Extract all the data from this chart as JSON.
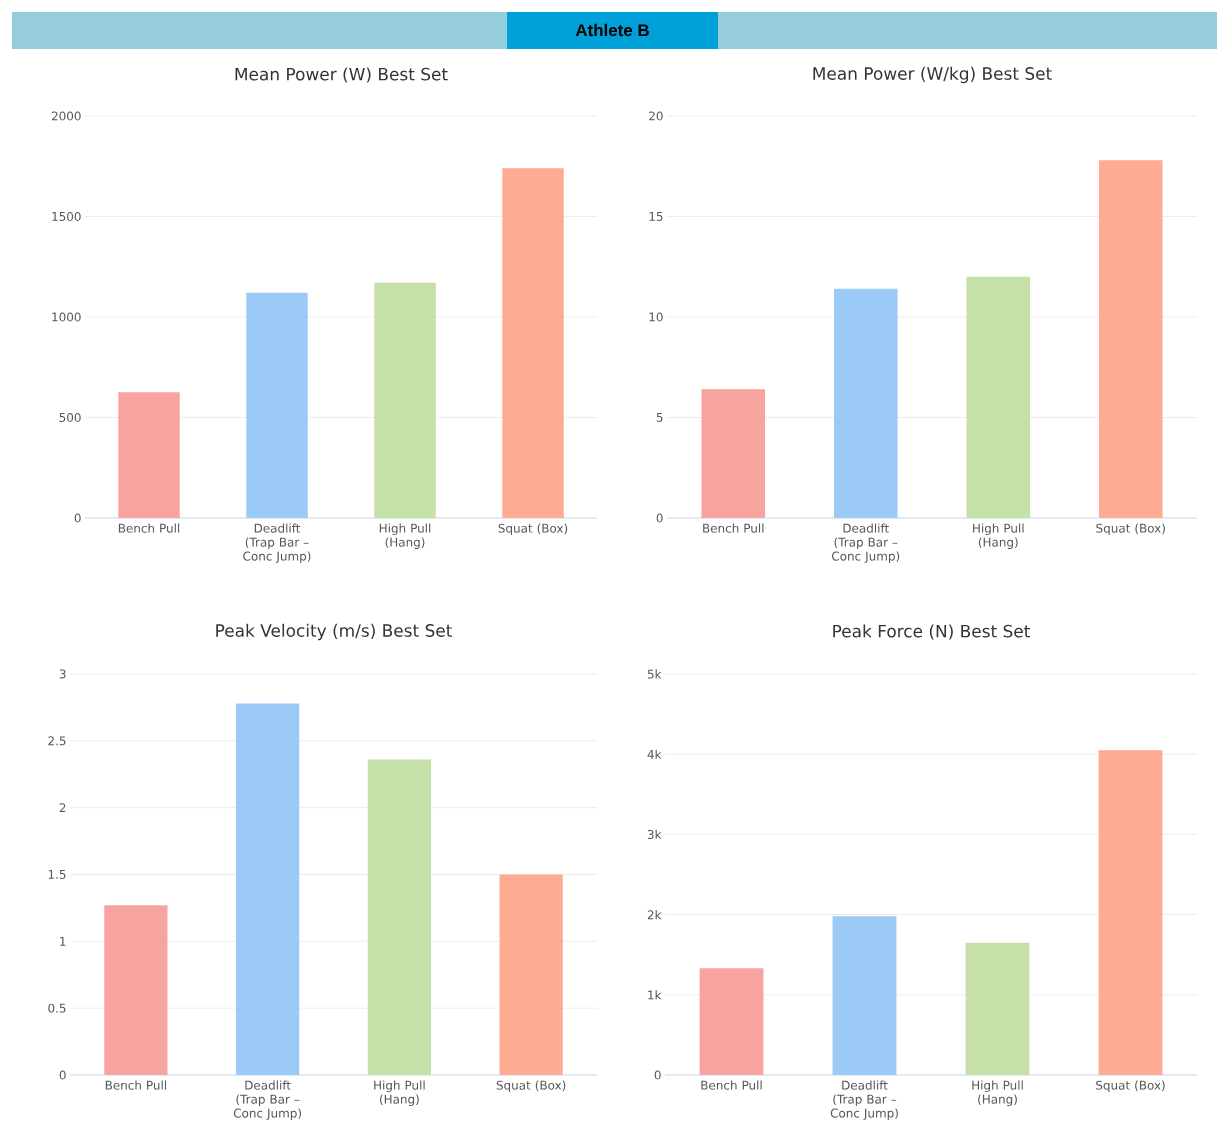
{
  "chart_data": [
    {
      "type": "other",
      "title": "Athlete B"
    },
    {
      "type": "bar",
      "title": "Mean Power (W) Best Set",
      "categories": [
        "Bench Pull",
        "Deadlift (Trap Bar – Conc Jump)",
        "High Pull (Hang)",
        "Squat (Box)"
      ],
      "values": [
        625,
        1120,
        1170,
        1740
      ],
      "colors": [
        "#f7a39f",
        "#9bcaf6",
        "#c6e0a9",
        "#fdab93"
      ],
      "ylim": [
        0,
        2000
      ],
      "yticks": [
        0,
        500,
        1000,
        1500,
        2000
      ],
      "grid": "y"
    },
    {
      "type": "bar",
      "title": "Mean Power (W/kg) Best Set",
      "categories": [
        "Bench Pull",
        "Deadlift (Trap Bar – Conc Jump)",
        "High Pull (Hang)",
        "Squat (Box)"
      ],
      "values": [
        6.4,
        11.4,
        12.0,
        17.8
      ],
      "colors": [
        "#f7a39f",
        "#9bcaf6",
        "#c6e0a9",
        "#fdab93"
      ],
      "ylim": [
        0,
        20
      ],
      "yticks": [
        0,
        5,
        10,
        15,
        20
      ],
      "grid": "y"
    },
    {
      "type": "bar",
      "title": "Peak Velocity (m/s) Best Set",
      "categories": [
        "Bench Pull",
        "Deadlift (Trap Bar – Conc Jump)",
        "High Pull (Hang)",
        "Squat (Box)"
      ],
      "values": [
        1.27,
        2.78,
        2.36,
        1.5
      ],
      "colors": [
        "#f7a39f",
        "#9bcaf6",
        "#c6e0a9",
        "#fdab93"
      ],
      "ylim": [
        0,
        3
      ],
      "yticks": [
        0,
        0.5,
        1,
        1.5,
        2,
        2.5,
        3
      ],
      "grid": "y"
    },
    {
      "type": "bar",
      "title": "Peak Force (N) Best Set",
      "categories": [
        "Bench Pull",
        "Deadlift (Trap Bar – Conc Jump)",
        "High Pull (Hang)",
        "Squat (Box)"
      ],
      "values": [
        1330,
        1980,
        1650,
        4050
      ],
      "colors": [
        "#f7a39f",
        "#9bcaf6",
        "#c6e0a9",
        "#fdab93"
      ],
      "ylim": [
        0,
        5000
      ],
      "yticks": [
        0,
        {
          "value": 1000,
          "label": "1k"
        },
        {
          "value": 2000,
          "label": "2k"
        },
        {
          "value": 3000,
          "label": "3k"
        },
        {
          "value": 4000,
          "label": "4k"
        },
        {
          "value": 5000,
          "label": "5k"
        }
      ],
      "grid": "y"
    }
  ]
}
